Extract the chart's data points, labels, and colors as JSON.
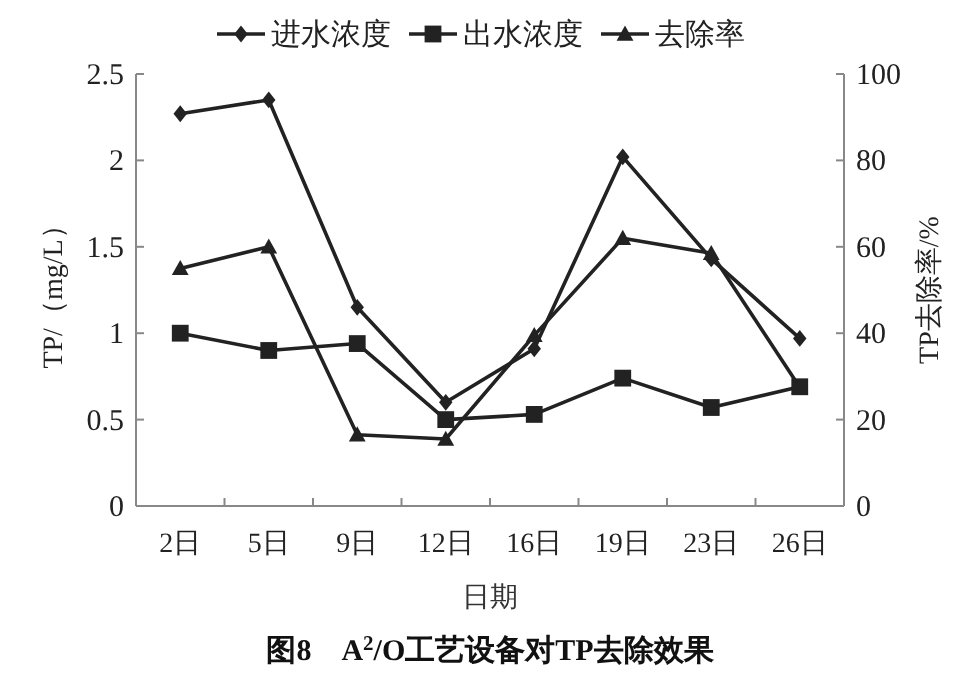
{
  "chart_data": {
    "type": "line",
    "title": "图8　A$^{2}$/O工艺设备对TP去除效果",
    "xlabel": "日期",
    "ylabel": "TP/（mg/L）",
    "y2label": "TP去除率/%",
    "categories": [
      "2日",
      "5日",
      "9日",
      "12日",
      "16日",
      "19日",
      "23日",
      "26日"
    ],
    "series": [
      {
        "name": "进水浓度",
        "color": "#222222",
        "marker": "diamond",
        "values": [
          2.27,
          2.35,
          1.15,
          0.6,
          0.91,
          2.02,
          1.43,
          0.97
        ]
      },
      {
        "name": "出水浓度",
        "color": "#222222",
        "marker": "square",
        "values": [
          1.0,
          0.9,
          0.94,
          0.5,
          0.53,
          0.74,
          0.57,
          0.69
        ]
      },
      {
        "name": "去除率",
        "color": "#222222",
        "marker": "triangle",
        "axis": "y2",
        "values": [
          55,
          60,
          16.5,
          15.5,
          39.5,
          62,
          58.5,
          27.5
        ]
      }
    ],
    "ylim": [
      0,
      2.5
    ],
    "yticks": [
      0,
      0.5,
      1,
      1.5,
      2,
      2.5
    ],
    "y2lim": [
      0,
      100
    ],
    "y2ticks": [
      0,
      20,
      40,
      60,
      80,
      100
    ],
    "legend": "top",
    "grid": false
  }
}
